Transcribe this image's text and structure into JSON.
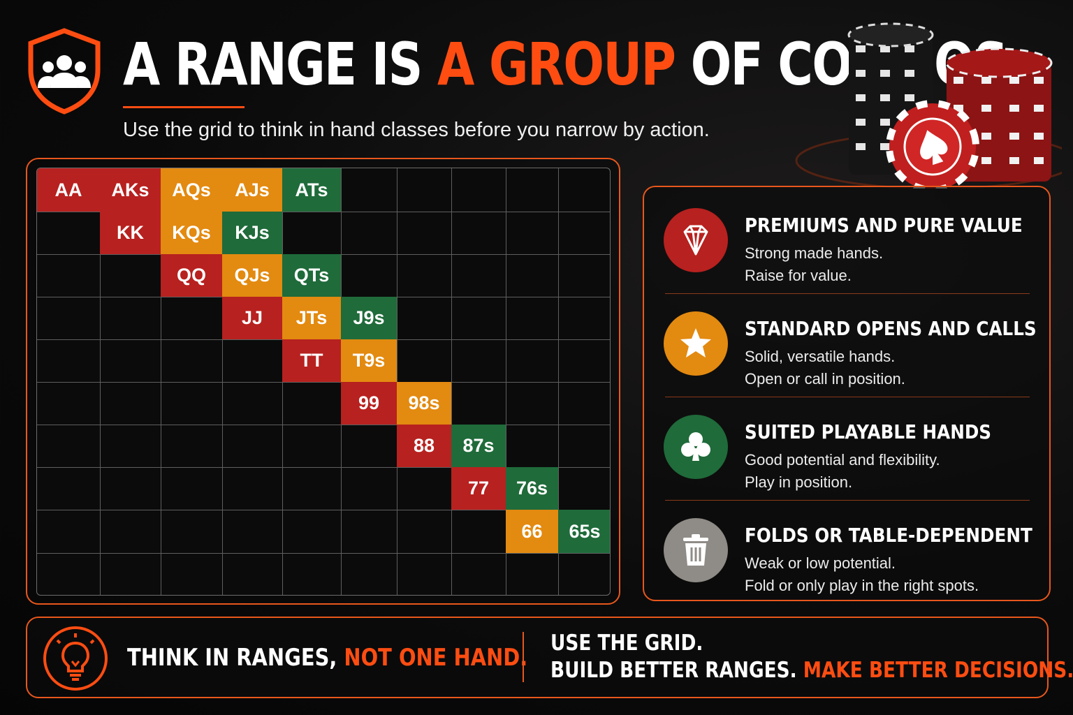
{
  "header": {
    "title_part1": "A RANGE IS ",
    "title_accent": "A GROUP",
    "title_part2": " OF COMBOS",
    "subtitle": "Use the grid to think in hand classes before you narrow by action."
  },
  "colors": {
    "accent": "#ff4d12",
    "premium": "#b7211f",
    "standard": "#e38a10",
    "suited": "#1f6b3a",
    "fold": "#8f8b86"
  },
  "grid": {
    "rows": 10,
    "cols": 10,
    "cells": [
      {
        "label": "AA",
        "row": 0,
        "col": 0,
        "category": "premium"
      },
      {
        "label": "AKs",
        "row": 0,
        "col": 1,
        "category": "premium"
      },
      {
        "label": "AQs",
        "row": 0,
        "col": 2,
        "category": "standard"
      },
      {
        "label": "AJs",
        "row": 0,
        "col": 3,
        "category": "standard"
      },
      {
        "label": "ATs",
        "row": 0,
        "col": 4,
        "category": "suited"
      },
      {
        "label": "KK",
        "row": 1,
        "col": 1,
        "category": "premium"
      },
      {
        "label": "KQs",
        "row": 1,
        "col": 2,
        "category": "standard"
      },
      {
        "label": "KJs",
        "row": 1,
        "col": 3,
        "category": "suited"
      },
      {
        "label": "QQ",
        "row": 2,
        "col": 2,
        "category": "premium"
      },
      {
        "label": "QJs",
        "row": 2,
        "col": 3,
        "category": "standard"
      },
      {
        "label": "QTs",
        "row": 2,
        "col": 4,
        "category": "suited"
      },
      {
        "label": "JJ",
        "row": 3,
        "col": 3,
        "category": "premium"
      },
      {
        "label": "JTs",
        "row": 3,
        "col": 4,
        "category": "standard"
      },
      {
        "label": "J9s",
        "row": 3,
        "col": 5,
        "category": "suited"
      },
      {
        "label": "TT",
        "row": 4,
        "col": 4,
        "category": "premium"
      },
      {
        "label": "T9s",
        "row": 4,
        "col": 5,
        "category": "standard"
      },
      {
        "label": "99",
        "row": 5,
        "col": 5,
        "category": "premium"
      },
      {
        "label": "98s",
        "row": 5,
        "col": 6,
        "category": "standard"
      },
      {
        "label": "88",
        "row": 6,
        "col": 6,
        "category": "premium"
      },
      {
        "label": "87s",
        "row": 6,
        "col": 7,
        "category": "suited"
      },
      {
        "label": "77",
        "row": 7,
        "col": 7,
        "category": "premium"
      },
      {
        "label": "76s",
        "row": 7,
        "col": 8,
        "category": "suited"
      },
      {
        "label": "66",
        "row": 8,
        "col": 8,
        "category": "standard"
      },
      {
        "label": "65s",
        "row": 8,
        "col": 9,
        "category": "suited"
      }
    ]
  },
  "legend": [
    {
      "icon": "diamond-gem-icon",
      "color": "#b7211f",
      "title": "PREMIUMS AND PURE VALUE",
      "line1": "Strong made hands.",
      "line2": "Raise for value."
    },
    {
      "icon": "star-icon",
      "color": "#e38a10",
      "title": "STANDARD OPENS AND CALLS",
      "line1": "Solid, versatile hands.",
      "line2": "Open or call in position."
    },
    {
      "icon": "club-icon",
      "color": "#1f6b3a",
      "title": "SUITED PLAYABLE HANDS",
      "line1": "Good potential and flexibility.",
      "line2": "Play in position."
    },
    {
      "icon": "trash-icon",
      "color": "#8f8b86",
      "title": "FOLDS OR TABLE-DEPENDENT",
      "line1": "Weak or low potential.",
      "line2": "Fold or only play in the right spots."
    }
  ],
  "footer": {
    "left_white": "THINK IN RANGES, ",
    "left_orange": "NOT ONE HAND.",
    "right_line1": "USE THE GRID.",
    "right_line2_white": "BUILD BETTER RANGES. ",
    "right_line2_orange": "MAKE BETTER DECISIONS."
  }
}
